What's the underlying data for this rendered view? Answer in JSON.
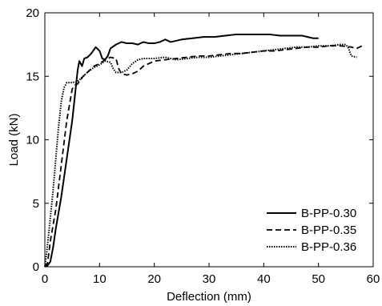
{
  "chart_data": {
    "type": "line",
    "xlabel": "Deflection (mm)",
    "ylabel": "Load (kN)",
    "xlim": [
      0,
      60
    ],
    "ylim": [
      0,
      20
    ],
    "xticks": [
      0,
      10,
      20,
      30,
      40,
      50,
      60
    ],
    "yticks": [
      0,
      5,
      10,
      15,
      20
    ],
    "grid": false,
    "legend_position": "bottom-right",
    "series": [
      {
        "name": "B-PP-0.30",
        "line_style": "solid",
        "color": "#000000",
        "points": [
          [
            0,
            0
          ],
          [
            0.5,
            0.1
          ],
          [
            1,
            0.4
          ],
          [
            1.5,
            1.5
          ],
          [
            2,
            3
          ],
          [
            3,
            5.5
          ],
          [
            4,
            8.5
          ],
          [
            5,
            11.5
          ],
          [
            5.5,
            13.5
          ],
          [
            6,
            15.5
          ],
          [
            6.3,
            16.2
          ],
          [
            6.8,
            15.8
          ],
          [
            7.2,
            16.4
          ],
          [
            7.8,
            16.5
          ],
          [
            8.5,
            16.8
          ],
          [
            9.3,
            17.3
          ],
          [
            10,
            17.0
          ],
          [
            10.5,
            16.4
          ],
          [
            11,
            16.3
          ],
          [
            11.5,
            16.6
          ],
          [
            12,
            17.2
          ],
          [
            13,
            17.5
          ],
          [
            14,
            17.7
          ],
          [
            15,
            17.6
          ],
          [
            16,
            17.6
          ],
          [
            17,
            17.5
          ],
          [
            18,
            17.7
          ],
          [
            19,
            17.6
          ],
          [
            20,
            17.6
          ],
          [
            21,
            17.7
          ],
          [
            22,
            17.9
          ],
          [
            23,
            17.7
          ],
          [
            25,
            17.9
          ],
          [
            27,
            18.0
          ],
          [
            29,
            18.1
          ],
          [
            31,
            18.1
          ],
          [
            33,
            18.2
          ],
          [
            35,
            18.3
          ],
          [
            37,
            18.3
          ],
          [
            39,
            18.3
          ],
          [
            41,
            18.3
          ],
          [
            43,
            18.2
          ],
          [
            45,
            18.2
          ],
          [
            47,
            18.2
          ],
          [
            48,
            18.1
          ],
          [
            49,
            18.0
          ],
          [
            50,
            18.0
          ]
        ]
      },
      {
        "name": "B-PP-0.35",
        "line_style": "dashed",
        "color": "#000000",
        "points": [
          [
            0,
            0
          ],
          [
            0.5,
            0.3
          ],
          [
            1,
            2
          ],
          [
            2,
            4.5
          ],
          [
            3,
            8
          ],
          [
            4,
            11.5
          ],
          [
            5,
            14.0
          ],
          [
            5.5,
            14.3
          ],
          [
            6,
            14.4
          ],
          [
            7,
            15.0
          ],
          [
            8,
            15.4
          ],
          [
            9,
            15.8
          ],
          [
            10,
            16.0
          ],
          [
            11,
            16.3
          ],
          [
            12,
            16.5
          ],
          [
            13,
            16.4
          ],
          [
            13.5,
            15.6
          ],
          [
            14,
            15.2
          ],
          [
            15,
            15.1
          ],
          [
            16,
            15.2
          ],
          [
            17,
            15.4
          ],
          [
            18,
            15.8
          ],
          [
            20,
            16.2
          ],
          [
            22,
            16.3
          ],
          [
            24,
            16.4
          ],
          [
            26,
            16.5
          ],
          [
            28,
            16.6
          ],
          [
            30,
            16.6
          ],
          [
            32,
            16.7
          ],
          [
            34,
            16.8
          ],
          [
            36,
            16.8
          ],
          [
            38,
            16.9
          ],
          [
            40,
            17.0
          ],
          [
            42,
            17.0
          ],
          [
            44,
            17.1
          ],
          [
            46,
            17.2
          ],
          [
            48,
            17.3
          ],
          [
            50,
            17.3
          ],
          [
            52,
            17.4
          ],
          [
            54,
            17.4
          ],
          [
            56,
            17.3
          ],
          [
            57,
            17.2
          ],
          [
            58,
            17.4
          ]
        ]
      },
      {
        "name": "B-PP-0.36",
        "line_style": "dotted",
        "color": "#000000",
        "points": [
          [
            0,
            0
          ],
          [
            0.3,
            1
          ],
          [
            0.8,
            3
          ],
          [
            1.5,
            6
          ],
          [
            2,
            8.5
          ],
          [
            2.5,
            11
          ],
          [
            3,
            13
          ],
          [
            3.5,
            14.1
          ],
          [
            4,
            14.5
          ],
          [
            5,
            14.5
          ],
          [
            6,
            14.6
          ],
          [
            7,
            15.0
          ],
          [
            8,
            15.4
          ],
          [
            9,
            15.7
          ],
          [
            10,
            15.9
          ],
          [
            11,
            16.2
          ],
          [
            12,
            16.1
          ],
          [
            12.5,
            15.6
          ],
          [
            13,
            15.3
          ],
          [
            14,
            15.3
          ],
          [
            15,
            15.5
          ],
          [
            16,
            16.0
          ],
          [
            17,
            16.3
          ],
          [
            18,
            16.4
          ],
          [
            20,
            16.4
          ],
          [
            22,
            16.5
          ],
          [
            24,
            16.3
          ],
          [
            26,
            16.4
          ],
          [
            28,
            16.5
          ],
          [
            30,
            16.5
          ],
          [
            32,
            16.6
          ],
          [
            34,
            16.7
          ],
          [
            36,
            16.8
          ],
          [
            38,
            16.9
          ],
          [
            40,
            17.0
          ],
          [
            42,
            17.1
          ],
          [
            44,
            17.2
          ],
          [
            46,
            17.3
          ],
          [
            48,
            17.3
          ],
          [
            50,
            17.4
          ],
          [
            52,
            17.4
          ],
          [
            54,
            17.5
          ],
          [
            55,
            17.5
          ],
          [
            55.5,
            17.2
          ],
          [
            56,
            16.6
          ],
          [
            57,
            16.5
          ]
        ]
      }
    ]
  }
}
